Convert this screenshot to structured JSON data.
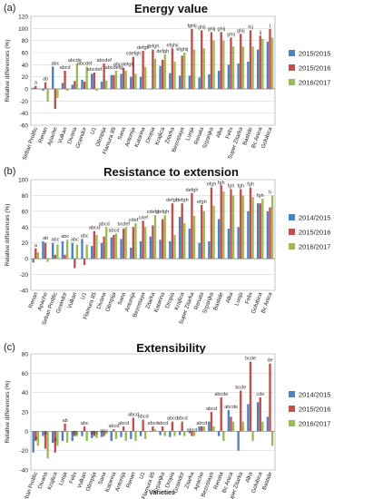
{
  "chart_data": [
    {
      "panel": "(a)",
      "type": "bar",
      "title": "Energy value",
      "ylabel": "Relative differences (%)",
      "xlabel": "",
      "ylim": [
        -60,
        120
      ],
      "yticks": [
        -60,
        -40,
        -20,
        0,
        20,
        40,
        60,
        80,
        100,
        120
      ],
      "grid": true,
      "legend_position": "right",
      "colors": [
        "#4f81bd",
        "#c0504d",
        "#9bbb59"
      ],
      "categories": [
        "Sirban Prolific",
        "Renan",
        "Apache",
        "Vulkan",
        "Divana",
        "Graindor",
        "U1",
        "Olimpija",
        "Flamura 85",
        "Sana",
        "Antonija",
        "Katarina",
        "Dropia",
        "Krajlica",
        "Zitarka",
        "Bezostaya",
        "Luoja",
        "Renata",
        "Srpanjka",
        "Alka",
        "Felix",
        "Super Zitarka",
        "Bastide",
        "Bc Anica",
        "Golubica"
      ],
      "letters": [
        "a",
        "ab",
        "abc",
        "abcd",
        "abcde",
        "abcdef",
        "abcdef",
        "abcdef",
        "abcdefg",
        "abcdefgh",
        "cdefgh",
        "defgh",
        "defgh",
        "defgh",
        "efghij",
        "efghij",
        "fghij",
        "ghij",
        "ghij",
        "ghij",
        "ghij",
        "ghij",
        "hij",
        "ij",
        "j"
      ],
      "series": [
        {
          "name": "2015/2015",
          "values": [
            2,
            -3,
            37,
            10,
            7,
            15,
            25,
            12,
            23,
            25,
            20,
            20,
            0,
            38,
            26,
            22,
            22,
            19,
            24,
            30,
            40,
            42,
            45,
            65,
            78
          ]
        },
        {
          "name": "2015/2016",
          "values": [
            5,
            11,
            -33,
            30,
            13,
            12,
            27,
            42,
            23,
            35,
            53,
            63,
            65,
            48,
            67,
            55,
            99,
            97,
            94,
            94,
            85,
            91,
            97,
            88,
            99
          ]
        },
        {
          "name": "2016/2017",
          "values": [
            1,
            -21,
            -15,
            -3,
            42,
            37,
            -3,
            14,
            30,
            30,
            25,
            36,
            50,
            57,
            45,
            60,
            65,
            67,
            80,
            80,
            70,
            70,
            70,
            83,
            85
          ]
        }
      ]
    },
    {
      "panel": "(b)",
      "type": "bar",
      "title": "Resistance to extension",
      "ylabel": "Relative differences (%)",
      "xlabel": "",
      "ylim": [
        -40,
        100
      ],
      "yticks": [
        -40,
        -20,
        0,
        20,
        40,
        60,
        80,
        100
      ],
      "grid": true,
      "legend_position": "right",
      "colors": [
        "#4f81bd",
        "#c0504d",
        "#9bbb59"
      ],
      "categories": [
        "Renan",
        "Apache",
        "Sirban Prolific",
        "Graindor",
        "Vulkan",
        "U1",
        "Flamura 85",
        "Divana",
        "Olimpija",
        "Sana",
        "Antonija",
        "Bezostaya",
        "Zitarka",
        "Katarina",
        "Dropia",
        "Krajlica",
        "Super Zitarka",
        "Renata",
        "Srpanjka",
        "Bastide",
        "Alka",
        "Luoja",
        "Felix",
        "Golubica",
        "Bc Anica"
      ],
      "letters": [
        "a",
        "ab",
        "abc",
        "abc",
        "abc",
        "abc",
        "abcd",
        "abcd",
        "abcd",
        "bcdef",
        "cdef",
        "cdef",
        "cdefg",
        "defgh",
        "defgh",
        "defgh",
        "defgh",
        "efgh",
        "efgh",
        "fgh",
        "fgh",
        "fgh",
        "fgh",
        "fgh",
        "h"
      ],
      "series": [
        {
          "name": "2014/2015",
          "values": [
            -5,
            22,
            20,
            22,
            20,
            25,
            16,
            20,
            27,
            25,
            14,
            22,
            28,
            24,
            22,
            53,
            38,
            20,
            22,
            50,
            38,
            40,
            60,
            70,
            60
          ]
        },
        {
          "name": "2015/2016",
          "values": [
            13,
            20,
            5,
            5,
            -12,
            -8,
            35,
            28,
            30,
            38,
            40,
            48,
            42,
            50,
            70,
            70,
            83,
            68,
            90,
            93,
            88,
            88,
            90,
            70,
            65
          ]
        },
        {
          "name": "2016/2017",
          "values": [
            8,
            -4,
            18,
            24,
            18,
            18,
            30,
            40,
            32,
            40,
            45,
            40,
            55,
            55,
            30,
            45,
            54,
            60,
            67,
            85,
            80,
            80,
            78,
            76,
            80
          ]
        }
      ]
    },
    {
      "panel": "(c)",
      "type": "bar",
      "title": "Extensibility",
      "ylabel": "Relative differences (%)",
      "xlabel": "Varieties",
      "ylim": [
        -40,
        80
      ],
      "yticks": [
        -40,
        -20,
        0,
        20,
        40,
        60,
        80
      ],
      "grid": true,
      "legend_position": "right",
      "colors": [
        "#4f81bd",
        "#c0504d",
        "#9bbb59"
      ],
      "categories": [
        "Sirban Prolific",
        "Divana",
        "Krajlica",
        "Luoja",
        "Felix",
        "Vulkan",
        "Olimpija",
        "Sana",
        "Katarina",
        "Antonija",
        "Renan",
        "U1",
        "Flamura 85",
        "Srpanjka",
        "Dropia",
        "Graindor",
        "Zitarka",
        "Apache",
        "Bezostaya",
        "Renata",
        "Bc Anica",
        "Super Zitarka",
        "Alka",
        "Golubica",
        "Bastide"
      ],
      "letters": [
        "a",
        "a",
        "a",
        "ab",
        "ab",
        "abc",
        "abc",
        "abc",
        "abcd",
        "abcd",
        "abcd",
        "abcd",
        "abcd",
        "abcd",
        "abcd",
        "abcd",
        "abcd",
        "abcd",
        "abcd",
        "abcde",
        "abcde",
        "bcde",
        "bcde",
        "cde",
        "de"
      ],
      "series": [
        {
          "name": "2014/2015",
          "values": [
            -22,
            -5,
            -12,
            -10,
            -10,
            -5,
            -7,
            -6,
            -10,
            -6,
            -8,
            -5,
            0,
            -4,
            -6,
            -4,
            -2,
            5,
            10,
            -5,
            22,
            -20,
            28,
            30,
            15
          ]
        },
        {
          "name": "2015/2016",
          "values": [
            -10,
            -18,
            -22,
            8,
            -5,
            5,
            -5,
            -5,
            2,
            5,
            14,
            12,
            5,
            5,
            10,
            10,
            -5,
            5,
            20,
            35,
            15,
            42,
            72,
            35,
            70
          ]
        },
        {
          "name": "2016/2017",
          "values": [
            -15,
            -28,
            -15,
            -12,
            -5,
            -10,
            -7,
            -3,
            -8,
            -10,
            -10,
            -8,
            2,
            -5,
            -5,
            -5,
            -5,
            5,
            5,
            -10,
            10,
            10,
            -10,
            10,
            -15
          ]
        }
      ]
    }
  ]
}
